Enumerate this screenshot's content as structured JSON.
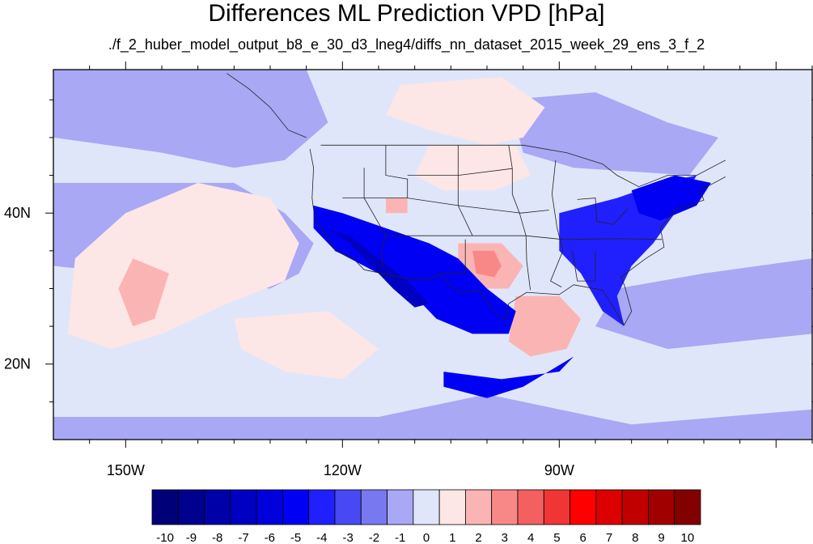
{
  "chart_data": {
    "type": "heatmap",
    "title": "Differences ML Prediction VPD [hPa]",
    "subtitle": "./f_2_huber_model_output_b8_e_30_d3_lneg4/diffs_nn_dataset_2015_week_29_ens_3_f_2",
    "projection": "cylindrical-equidistant",
    "lon_range": [
      -160,
      -55
    ],
    "lat_range": [
      10,
      59
    ],
    "xticks": [
      {
        "value": -150,
        "label": "150W"
      },
      {
        "value": -120,
        "label": "120W"
      },
      {
        "value": -90,
        "label": "90W"
      }
    ],
    "yticks": [
      {
        "value": 40,
        "label": "40N"
      },
      {
        "value": 20,
        "label": "20N"
      }
    ],
    "colorbar": {
      "labels": [
        "-10",
        "-9",
        "-8",
        "-7",
        "-6",
        "-5",
        "-4",
        "-3",
        "-2",
        "-1",
        "0",
        "1",
        "2",
        "3",
        "4",
        "5",
        "6",
        "7",
        "8",
        "9",
        "10"
      ],
      "colors": [
        "#000078",
        "#00008f",
        "#0000a8",
        "#0000c3",
        "#0000dc",
        "#0000f5",
        "#2020ff",
        "#4848f5",
        "#7878f0",
        "#a8a8f5",
        "#e0e6fa",
        "#fde6e6",
        "#fbb4b4",
        "#f88888",
        "#f45f5f",
        "#f03535",
        "#ff0000",
        "#dc0000",
        "#c00000",
        "#a00000",
        "#820000"
      ]
    },
    "regions": [
      {
        "name": "background",
        "value": 0.5,
        "polygon": [
          [
            -160,
            10
          ],
          [
            -55,
            10
          ],
          [
            -55,
            59
          ],
          [
            -160,
            59
          ]
        ]
      },
      {
        "name": "north-pacific",
        "value": -0.5,
        "polygon": [
          [
            -160,
            59
          ],
          [
            -125,
            59
          ],
          [
            -122,
            52
          ],
          [
            -128,
            47
          ],
          [
            -135,
            46
          ],
          [
            -145,
            48
          ],
          [
            -160,
            50
          ]
        ]
      },
      {
        "name": "pacific-east-coast",
        "value": -0.5,
        "polygon": [
          [
            -160,
            44
          ],
          [
            -135,
            44
          ],
          [
            -128,
            40
          ],
          [
            -124,
            36
          ],
          [
            -126,
            32
          ],
          [
            -130,
            30
          ],
          [
            -160,
            33
          ]
        ]
      },
      {
        "name": "tropical-pacific",
        "value": -0.5,
        "polygon": [
          [
            -160,
            13
          ],
          [
            -115,
            13
          ],
          [
            -100,
            16
          ],
          [
            -90,
            14
          ],
          [
            -80,
            12
          ],
          [
            -55,
            14
          ],
          [
            -55,
            10
          ],
          [
            -160,
            10
          ]
        ]
      },
      {
        "name": "gulf-atlantic",
        "value": -0.5,
        "polygon": [
          [
            -82,
            30
          ],
          [
            -70,
            32
          ],
          [
            -55,
            34
          ],
          [
            -55,
            24
          ],
          [
            -75,
            22
          ],
          [
            -85,
            25
          ]
        ]
      },
      {
        "name": "northern-interior",
        "value": -0.5,
        "polygon": [
          [
            -97,
            55
          ],
          [
            -85,
            56
          ],
          [
            -75,
            52
          ],
          [
            -68,
            50
          ],
          [
            -72,
            45
          ],
          [
            -88,
            46
          ],
          [
            -95,
            48
          ]
        ]
      },
      {
        "name": "north-pacific-high",
        "value": 1.2,
        "polygon": [
          [
            -140,
            44
          ],
          [
            -130,
            42
          ],
          [
            -126,
            36
          ],
          [
            -128,
            31
          ],
          [
            -136,
            28
          ],
          [
            -145,
            24
          ],
          [
            -152,
            22
          ],
          [
            -158,
            24
          ],
          [
            -157,
            34
          ],
          [
            -150,
            40
          ]
        ]
      },
      {
        "name": "north-pacific-high-core",
        "value": 2.5,
        "polygon": [
          [
            -149,
            34
          ],
          [
            -144,
            32
          ],
          [
            -146,
            26
          ],
          [
            -149,
            25
          ],
          [
            -151,
            30
          ]
        ]
      },
      {
        "name": "subtropical-pacific",
        "value": 1.2,
        "polygon": [
          [
            -135,
            26
          ],
          [
            -122,
            27
          ],
          [
            -115,
            22
          ],
          [
            -120,
            18
          ],
          [
            -128,
            19
          ],
          [
            -134,
            22
          ]
        ]
      },
      {
        "name": "canada-plains",
        "value": 1.3,
        "polygon": [
          [
            -112,
            57
          ],
          [
            -98,
            58
          ],
          [
            -92,
            54
          ],
          [
            -95,
            50
          ],
          [
            -100,
            49
          ],
          [
            -108,
            51
          ],
          [
            -114,
            53
          ]
        ]
      },
      {
        "name": "northern-plains",
        "value": 1.5,
        "polygon": [
          [
            -108,
            49
          ],
          [
            -96,
            49
          ],
          [
            -94,
            45
          ],
          [
            -99,
            43
          ],
          [
            -106,
            43
          ],
          [
            -110,
            45
          ]
        ]
      },
      {
        "name": "southern-plains",
        "value": 2.5,
        "polygon": [
          [
            -104,
            36
          ],
          [
            -98,
            36
          ],
          [
            -95,
            33
          ],
          [
            -97,
            30
          ],
          [
            -101,
            30
          ],
          [
            -104,
            32
          ]
        ]
      },
      {
        "name": "southern-plains-core",
        "value": 3.5,
        "polygon": [
          [
            -102,
            35
          ],
          [
            -99,
            35
          ],
          [
            -98,
            33
          ],
          [
            -99,
            31.5
          ],
          [
            -101.5,
            32
          ]
        ]
      },
      {
        "name": "gulf-of-mexico",
        "value": 2.0,
        "polygon": [
          [
            -96,
            29
          ],
          [
            -90,
            29
          ],
          [
            -87,
            26
          ],
          [
            -89,
            22
          ],
          [
            -94,
            21
          ],
          [
            -97,
            23
          ]
        ]
      },
      {
        "name": "great-basin-spot",
        "value": 2.5,
        "polygon": [
          [
            -114,
            42
          ],
          [
            -111,
            42
          ],
          [
            -111,
            40
          ],
          [
            -114,
            40
          ]
        ]
      },
      {
        "name": "southwest-west-coast",
        "value": -4.5,
        "polygon": [
          [
            -124,
            41
          ],
          [
            -120,
            40
          ],
          [
            -114,
            38
          ],
          [
            -108,
            36
          ],
          [
            -104,
            34
          ],
          [
            -100,
            30
          ],
          [
            -96,
            27
          ],
          [
            -97,
            24
          ],
          [
            -102,
            24
          ],
          [
            -107,
            26
          ],
          [
            -110,
            29
          ],
          [
            -113,
            31
          ],
          [
            -117,
            33
          ],
          [
            -121,
            35
          ],
          [
            -124,
            38
          ]
        ]
      },
      {
        "name": "southwest-core",
        "value": -6.5,
        "polygon": [
          [
            -122,
            38
          ],
          [
            -119,
            36
          ],
          [
            -116,
            33
          ],
          [
            -113,
            30
          ],
          [
            -110,
            27.5
          ],
          [
            -108,
            28
          ],
          [
            -111,
            31
          ],
          [
            -115,
            34
          ],
          [
            -119,
            37
          ]
        ]
      },
      {
        "name": "mexico-south",
        "value": -4.5,
        "polygon": [
          [
            -106,
            19
          ],
          [
            -98,
            18
          ],
          [
            -90,
            19
          ],
          [
            -88,
            21
          ],
          [
            -95,
            17
          ],
          [
            -100,
            15.5
          ],
          [
            -106,
            17
          ]
        ]
      },
      {
        "name": "eastern-us",
        "value": -3.5,
        "polygon": [
          [
            -90,
            40
          ],
          [
            -82,
            42
          ],
          [
            -76,
            44
          ],
          [
            -71,
            45
          ],
          [
            -74,
            40
          ],
          [
            -77,
            36
          ],
          [
            -80,
            33
          ],
          [
            -82,
            29
          ],
          [
            -81,
            25
          ],
          [
            -84,
            27
          ],
          [
            -87,
            32
          ],
          [
            -90,
            35
          ]
        ]
      },
      {
        "name": "northeast-us",
        "value": -4.5,
        "polygon": [
          [
            -80,
            43
          ],
          [
            -74,
            45
          ],
          [
            -69,
            44
          ],
          [
            -71,
            41
          ],
          [
            -76,
            39
          ],
          [
            -79,
            40
          ]
        ]
      }
    ]
  }
}
